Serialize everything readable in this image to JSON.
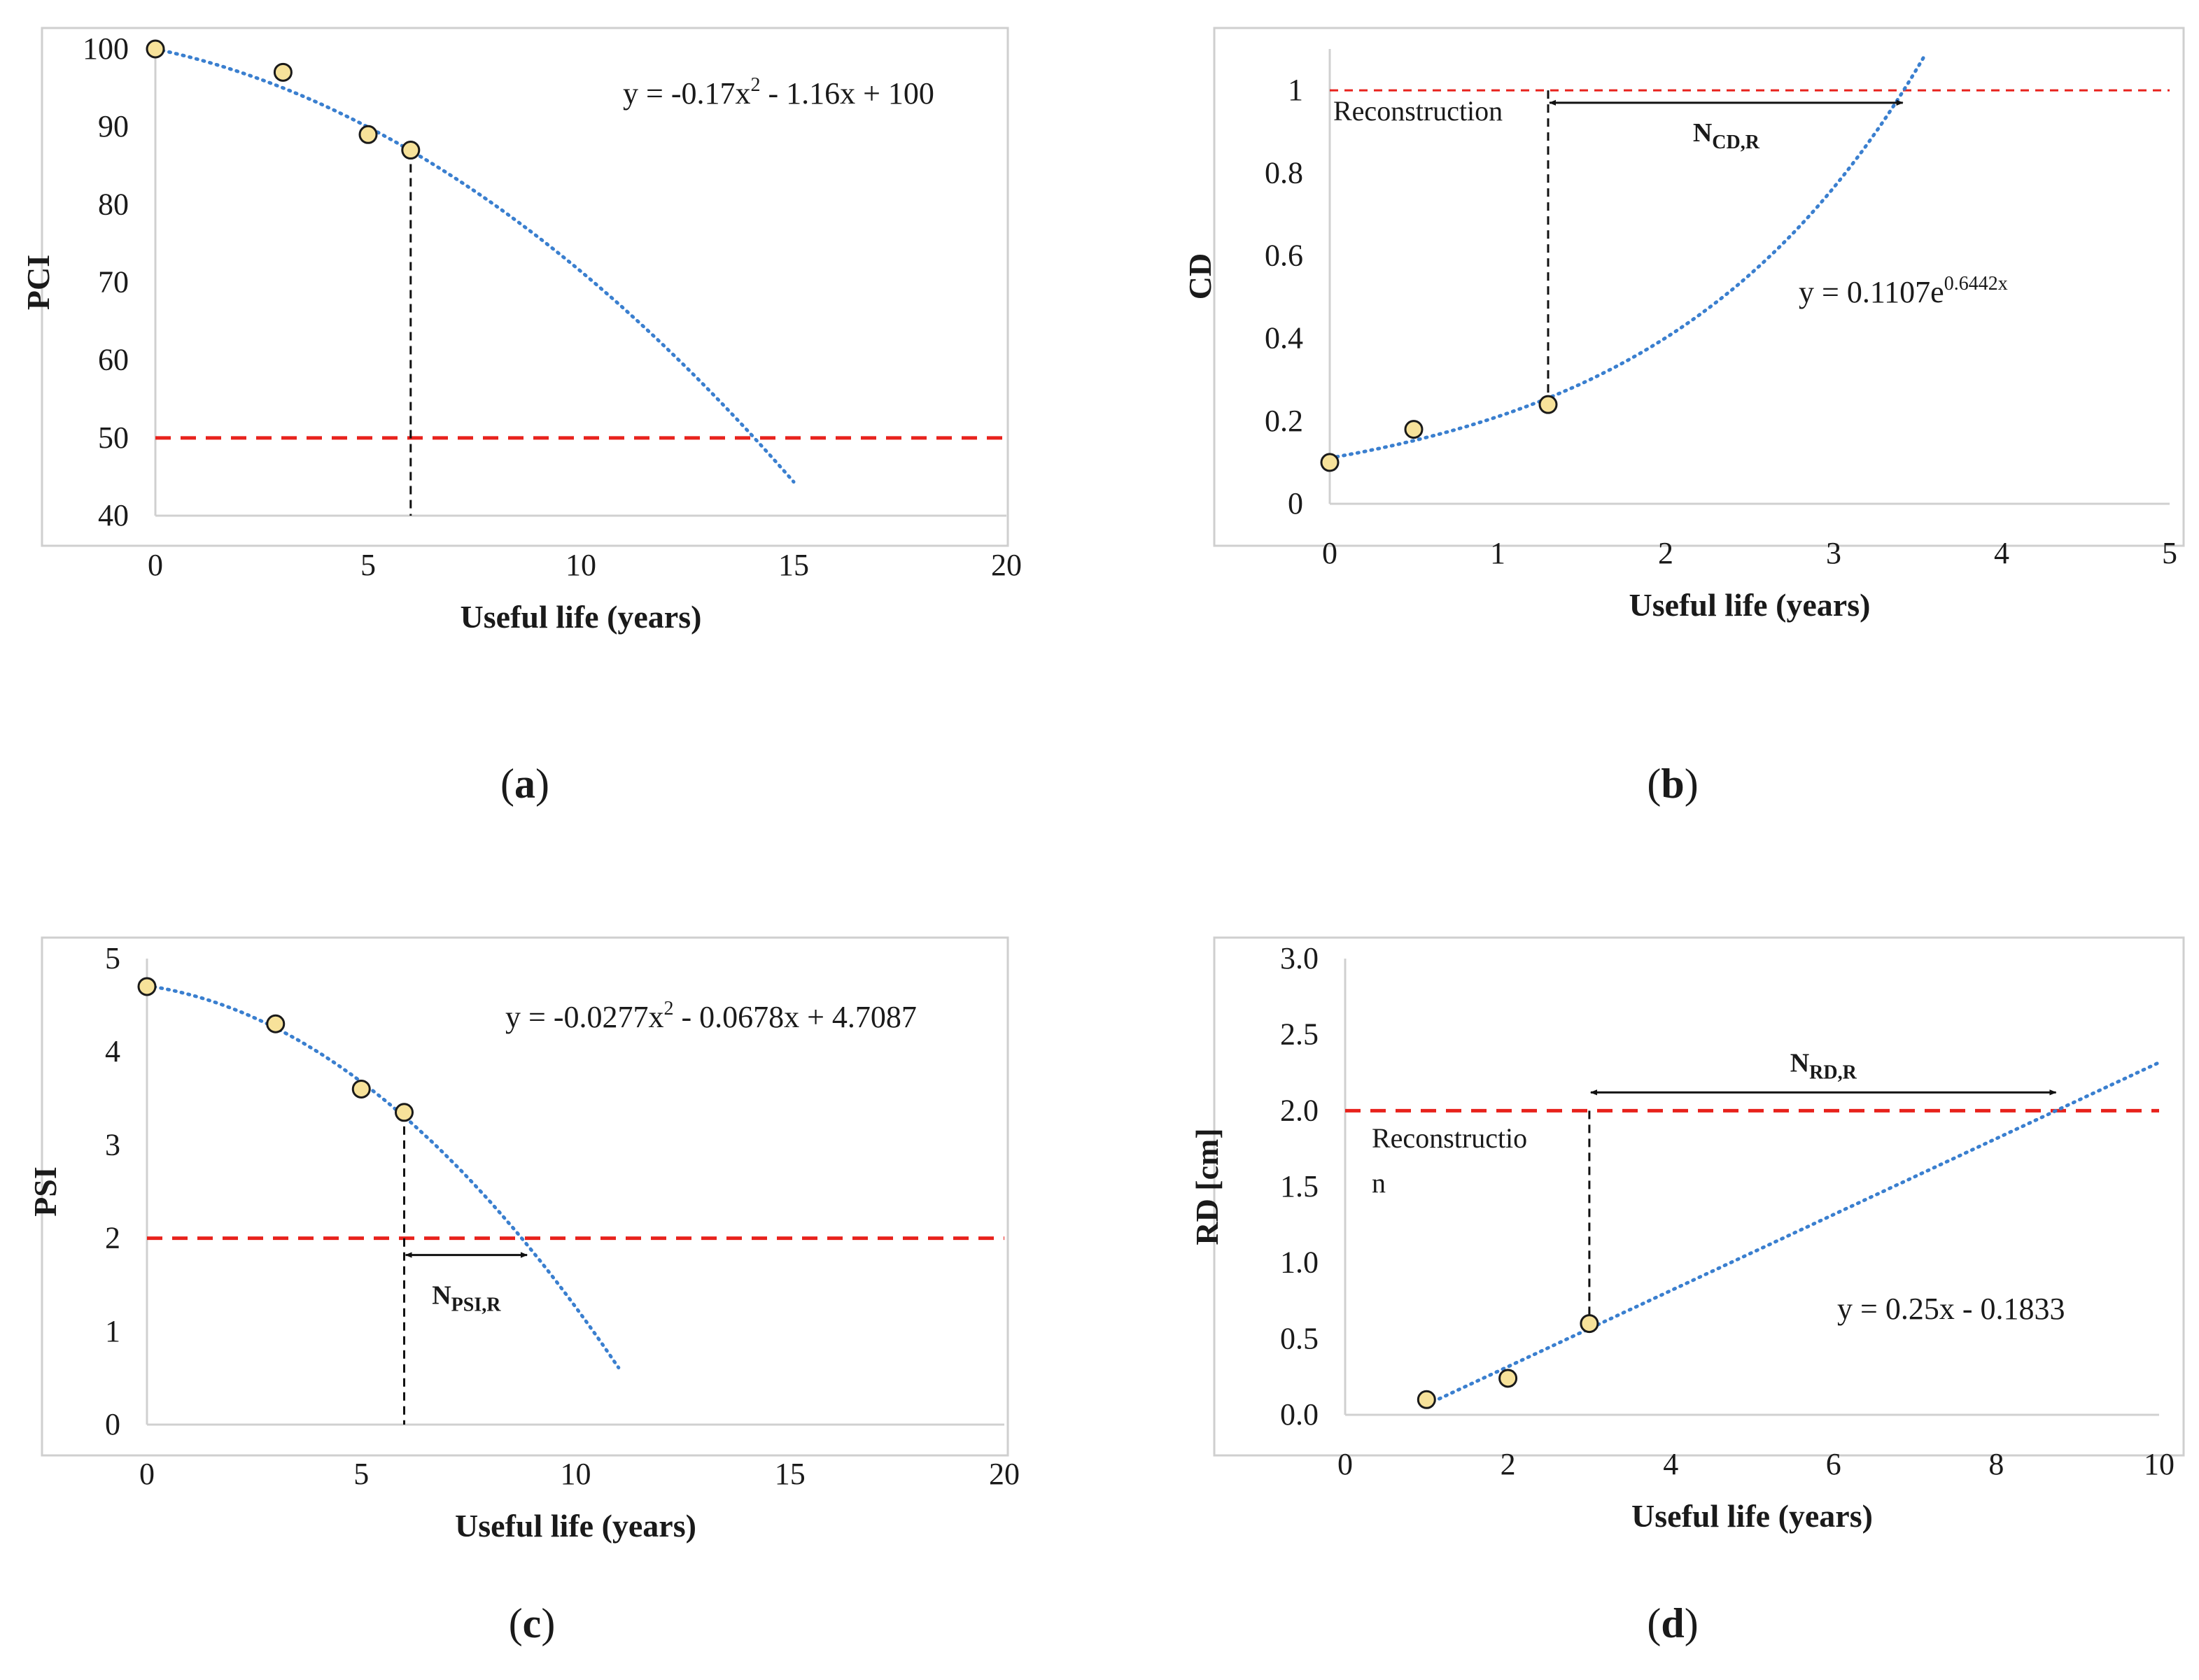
{
  "colors": {
    "threshold": "#e8221c",
    "trend": "#3a7fcf",
    "marker_fill": "#f7e29a",
    "marker_stroke": "#1a1a1a",
    "frame": "#cfcfcf",
    "guide": "#111111"
  },
  "chart_data": [
    {
      "id": "a",
      "type": "scatter",
      "panel_label": "a",
      "xlabel": "Useful life (years)",
      "ylabel": "PCI",
      "xlim": [
        0,
        20
      ],
      "ylim": [
        40,
        100
      ],
      "xticks": [
        0,
        5,
        10,
        15,
        20
      ],
      "yticks": [
        40,
        50,
        60,
        70,
        80,
        90,
        100
      ],
      "xtick_labels": [
        "0",
        "5",
        "10",
        "15",
        "20"
      ],
      "ytick_labels": [
        "40",
        "50",
        "60",
        "70",
        "80",
        "90",
        "100"
      ],
      "points": [
        {
          "x": 0,
          "y": 100
        },
        {
          "x": 3,
          "y": 97
        },
        {
          "x": 5,
          "y": 89
        },
        {
          "x": 6,
          "y": 87
        }
      ],
      "trend": {
        "kind": "poly2",
        "a": -0.17,
        "b": -1.16,
        "c": 100,
        "x_from": 0,
        "x_to": 15
      },
      "equation": {
        "base": "y = -0.17x",
        "sup": "2",
        "rest": " - 1.16x + 100"
      },
      "threshold": {
        "y": 50
      },
      "vline": {
        "x": 6
      },
      "reconstruction_label": [
        "",
        ""
      ],
      "n_label": {
        "main": "",
        "sub": ""
      }
    },
    {
      "id": "b",
      "type": "scatter",
      "panel_label": "b",
      "xlabel": "Useful life (years)",
      "ylabel": "CD",
      "xlim": [
        0,
        5
      ],
      "ylim": [
        0,
        1.1
      ],
      "xticks": [
        0,
        1,
        2,
        3,
        4,
        5
      ],
      "yticks": [
        0,
        0.2,
        0.4,
        0.6,
        0.8,
        1
      ],
      "xtick_labels": [
        "0",
        "1",
        "2",
        "3",
        "4",
        "5"
      ],
      "ytick_labels": [
        "0",
        "0.2",
        "0.4",
        "0.6",
        "0.8",
        "1"
      ],
      "points": [
        {
          "x": 0,
          "y": 0.1
        },
        {
          "x": 0.5,
          "y": 0.18
        },
        {
          "x": 1.3,
          "y": 0.24
        }
      ],
      "trend": {
        "kind": "exp",
        "a": 0.1107,
        "k": 0.6442,
        "x_from": 0,
        "x_to": 3.55
      },
      "equation": {
        "base": "y = 0.1107e",
        "sup": "0.6442x",
        "rest": ""
      },
      "threshold": {
        "y": 1
      },
      "vline": {
        "x": 1.3
      },
      "arrow": {
        "x1": 1.3,
        "x2": 3.42,
        "y": 0.97
      },
      "reconstruction_label": [
        "Reconstruction",
        ""
      ],
      "n_label": {
        "main": "N",
        "sub": "CD,R"
      }
    },
    {
      "id": "c",
      "type": "scatter",
      "panel_label": "c",
      "xlabel": "Useful life (years)",
      "ylabel": "PSI",
      "xlim": [
        0,
        20
      ],
      "ylim": [
        0,
        5
      ],
      "xticks": [
        0,
        5,
        10,
        15,
        20
      ],
      "yticks": [
        0,
        1,
        2,
        3,
        4,
        5
      ],
      "xtick_labels": [
        "0",
        "5",
        "10",
        "15",
        "20"
      ],
      "ytick_labels": [
        "0",
        "1",
        "2",
        "3",
        "4",
        "5"
      ],
      "points": [
        {
          "x": 0,
          "y": 4.7
        },
        {
          "x": 3,
          "y": 4.3
        },
        {
          "x": 5,
          "y": 3.6
        },
        {
          "x": 6,
          "y": 3.35
        }
      ],
      "trend": {
        "kind": "poly2",
        "a": -0.0277,
        "b": -0.0678,
        "c": 4.7087,
        "x_from": 0,
        "x_to": 11
      },
      "equation": {
        "base": "y = -0.0277x",
        "sup": "2",
        "rest": " - 0.0678x + 4.7087"
      },
      "threshold": {
        "y": 2
      },
      "vline": {
        "x": 6
      },
      "arrow": {
        "x1": 6,
        "x2": 8.9,
        "y": 1.82
      },
      "reconstruction_label": [
        "",
        ""
      ],
      "n_label": {
        "main": "N",
        "sub": "PSI,R"
      }
    },
    {
      "id": "d",
      "type": "scatter",
      "panel_label": "d",
      "xlabel": "Useful life (years)",
      "ylabel": "RD [cm]",
      "xlim": [
        0,
        10
      ],
      "ylim": [
        0,
        3
      ],
      "xticks": [
        0,
        2,
        4,
        6,
        8,
        10
      ],
      "yticks": [
        0,
        0.5,
        1,
        1.5,
        2,
        2.5,
        3
      ],
      "xtick_labels": [
        "0",
        "2",
        "4",
        "6",
        "8",
        "10"
      ],
      "ytick_labels": [
        "0.0",
        "0.5",
        "1.0",
        "1.5",
        "2.0",
        "2.5",
        "3.0"
      ],
      "points": [
        {
          "x": 1,
          "y": 0.1
        },
        {
          "x": 2,
          "y": 0.24
        },
        {
          "x": 3,
          "y": 0.6
        }
      ],
      "trend": {
        "kind": "linear",
        "m": 0.25,
        "b": -0.1833,
        "x_from": 1,
        "x_to": 10
      },
      "equation": {
        "base": "y = 0.25x - 0.1833",
        "sup": "",
        "rest": ""
      },
      "threshold": {
        "y": 2
      },
      "vline": {
        "x": 3
      },
      "arrow": {
        "x1": 3,
        "x2": 8.75,
        "y": 2.12
      },
      "reconstruction_label": [
        "Reconstructio",
        "n"
      ],
      "n_label": {
        "main": "N",
        "sub": "RD,R"
      }
    }
  ]
}
